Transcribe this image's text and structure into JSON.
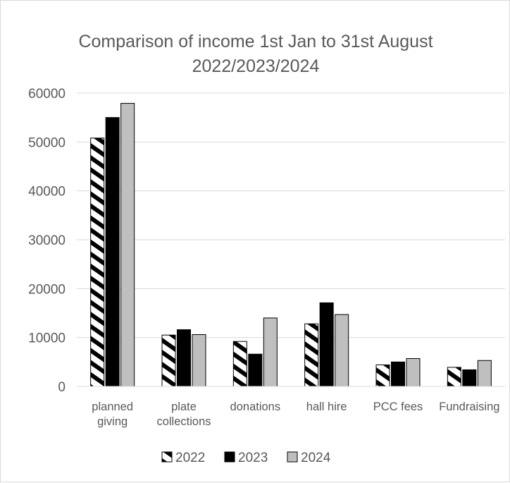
{
  "chart_data": {
    "type": "bar",
    "title": "Comparison of income 1st Jan to 31st August 2022/2023/2024",
    "title_lines": [
      "Comparison of income 1st Jan to 31st August",
      "2022/2023/2024"
    ],
    "categories": [
      "planned giving",
      "plate collections",
      "donations",
      "hall hire",
      "PCC fees",
      "Fundraising"
    ],
    "category_lines": [
      [
        "planned",
        "giving"
      ],
      [
        "plate",
        "collections"
      ],
      [
        "donations"
      ],
      [
        "hall hire"
      ],
      [
        "PCC fees"
      ],
      [
        "Fundraising"
      ]
    ],
    "series": [
      {
        "name": "2022",
        "values": [
          50800,
          10500,
          9200,
          12800,
          4400,
          3900
        ],
        "color": "#000000",
        "pattern": "diagonal-stripes"
      },
      {
        "name": "2023",
        "values": [
          55000,
          11600,
          6600,
          17100,
          5000,
          3400
        ],
        "color": "#000000",
        "pattern": "solid"
      },
      {
        "name": "2024",
        "values": [
          57900,
          10600,
          14000,
          14700,
          5700,
          5300
        ],
        "color": "#bfbfbf",
        "pattern": "solid"
      }
    ],
    "y_ticks": [
      0,
      10000,
      20000,
      30000,
      40000,
      50000,
      60000
    ],
    "ylim": [
      0,
      60000
    ],
    "xlabel": "",
    "ylabel": "",
    "grid": true,
    "legend_position": "bottom"
  }
}
